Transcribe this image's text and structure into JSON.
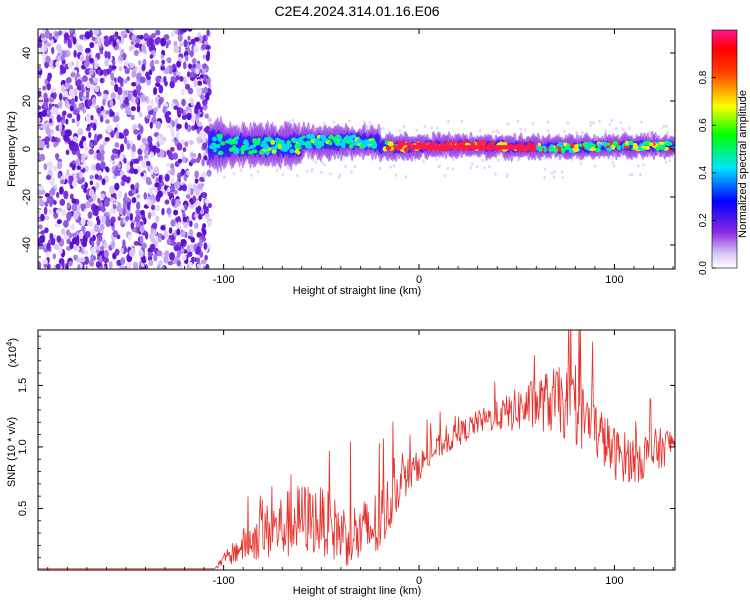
{
  "chart_data": [
    {
      "type": "heatmap",
      "title": "C2E4.2024.314.01.16.E06",
      "xlabel": "Height of straight line (km)",
      "ylabel": "Frequency (Hz)",
      "xlim": [
        -195,
        131
      ],
      "ylim": [
        -50,
        50
      ],
      "xticks": [
        -100,
        0,
        100
      ],
      "yticks": [
        -40,
        -20,
        0,
        20,
        40
      ],
      "noise_region_x": [
        -195,
        -107
      ],
      "signal_band_hz": [
        -5,
        7
      ],
      "colorbar": {
        "label": "Normalized spectral amplitude",
        "range": [
          0,
          1
        ],
        "ticks": [
          "0.0",
          "0.2",
          "0.4",
          "0.6",
          "0.8"
        ],
        "colors": [
          "#ffffff",
          "#8a2be2",
          "#0000ff",
          "#00e5ff",
          "#00ff00",
          "#ffff00",
          "#ff0000",
          "#ff1493"
        ]
      }
    },
    {
      "type": "line",
      "xlabel": "Height of straight line (km)",
      "ylabel": "SNR (10 * v/v)",
      "y_multiplier": "(x10",
      "y_multiplier_exp": "4",
      "y_multiplier_close": ")",
      "xlim": [
        -195,
        131
      ],
      "ylim": [
        0,
        1.95
      ],
      "xticks": [
        -100,
        0,
        100
      ],
      "yticks": [
        "0.5",
        "1.0",
        "1.5"
      ],
      "series": [
        {
          "name": "SNR",
          "color": "#e8302a",
          "x": [
            -195,
            -150,
            -105,
            -100,
            -90,
            -80,
            -70,
            -60,
            -50,
            -40,
            -30,
            -20,
            -10,
            0,
            10,
            20,
            30,
            40,
            50,
            60,
            70,
            80,
            90,
            100,
            110,
            120,
            131
          ],
          "y": [
            0.01,
            0.01,
            0.01,
            0.08,
            0.2,
            0.3,
            0.35,
            0.42,
            0.4,
            0.3,
            0.28,
            0.38,
            0.7,
            0.85,
            1.0,
            1.1,
            1.2,
            1.25,
            1.3,
            1.35,
            1.38,
            1.3,
            1.15,
            0.95,
            0.9,
            0.95,
            1.05
          ],
          "spread": [
            0,
            0,
            0,
            0.05,
            0.14,
            0.22,
            0.28,
            0.3,
            0.28,
            0.26,
            0.28,
            0.3,
            0.18,
            0.12,
            0.1,
            0.1,
            0.1,
            0.12,
            0.18,
            0.22,
            0.28,
            0.3,
            0.25,
            0.22,
            0.2,
            0.2,
            0.12
          ]
        }
      ]
    }
  ]
}
